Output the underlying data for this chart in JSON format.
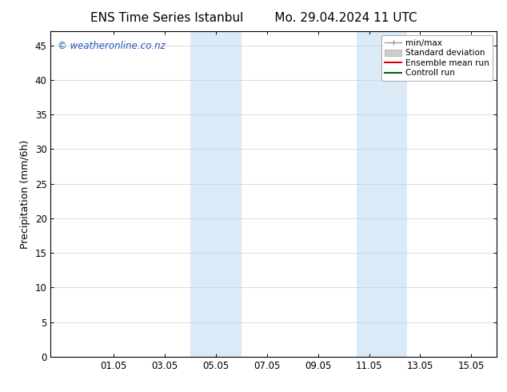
{
  "title_left": "ENS Time Series Istanbul",
  "title_right": "Mo. 29.04.2024 11 UTC",
  "ylabel": "Precipitation (mm/6h)",
  "ylim": [
    0,
    47
  ],
  "yticks": [
    0,
    5,
    10,
    15,
    20,
    25,
    30,
    35,
    40,
    45
  ],
  "xtick_labels": [
    "01.05",
    "03.05",
    "05.05",
    "07.05",
    "09.05",
    "11.05",
    "13.05",
    "15.05"
  ],
  "xtick_positions": [
    2.0,
    4.0,
    6.0,
    8.0,
    10.0,
    12.0,
    14.0,
    16.0
  ],
  "xlim": [
    -0.46,
    17.0
  ],
  "shaded_bands": [
    {
      "xmin": 5.0,
      "xmax": 7.0,
      "color": "#daeaf7"
    },
    {
      "xmin": 11.5,
      "xmax": 13.5,
      "color": "#daeaf7"
    }
  ],
  "background_color": "#ffffff",
  "plot_bg_color": "#ffffff",
  "grid_color": "#cccccc",
  "title_fontsize": 11,
  "axis_label_fontsize": 9,
  "tick_fontsize": 8.5,
  "watermark_text": "© weatheronline.co.nz",
  "watermark_color": "#2255bb",
  "legend_entries": [
    "min/max",
    "Standard deviation",
    "Ensemble mean run",
    "Controll run"
  ],
  "legend_line_color_minmax": "#999999",
  "legend_fill_color_std": "#cccccc",
  "legend_line_color_ens": "#dd0000",
  "legend_line_color_ctrl": "#006600"
}
